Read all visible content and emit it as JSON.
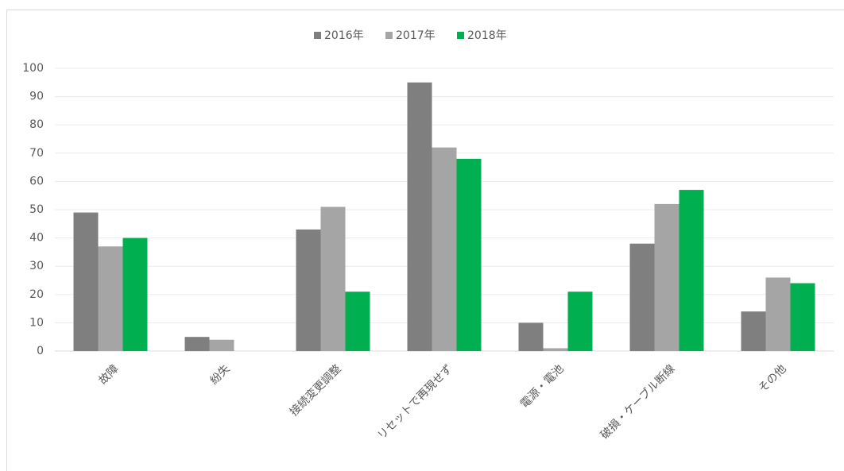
{
  "chart_data": {
    "type": "bar",
    "categories": [
      "故障",
      "紛失",
      "接続変更調整",
      "リセットで再現せず",
      "電源・電池",
      "破損・ケーブル断線",
      "その他"
    ],
    "series": [
      {
        "name": "2016年",
        "color": "#7f7f7f",
        "values": [
          49,
          5,
          43,
          95,
          10,
          38,
          14
        ]
      },
      {
        "name": "2017年",
        "color": "#a5a5a5",
        "values": [
          37,
          4,
          51,
          72,
          1,
          52,
          26
        ]
      },
      {
        "name": "2018年",
        "color": "#00b050",
        "values": [
          40,
          0,
          21,
          68,
          21,
          57,
          24
        ]
      }
    ],
    "ylim": [
      0,
      100
    ],
    "yticks": [
      0,
      10,
      20,
      30,
      40,
      50,
      60,
      70,
      80,
      90,
      100
    ],
    "grid": true,
    "legend": "top"
  }
}
